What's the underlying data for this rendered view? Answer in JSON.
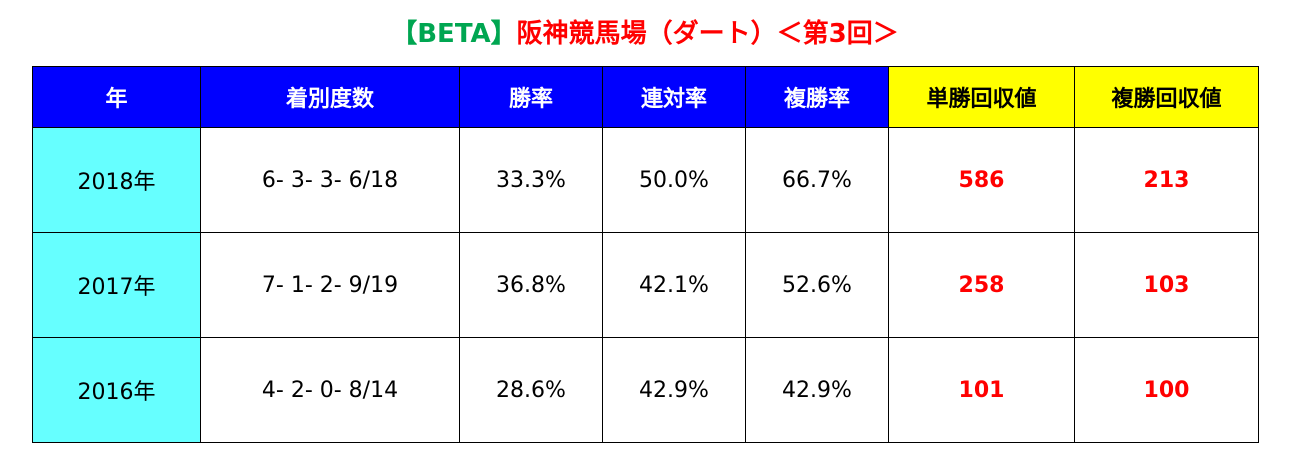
{
  "title": {
    "prefix": "【BETA】",
    "main": "阪神競馬場（ダート）＜第3回＞"
  },
  "table": {
    "header": [
      "年",
      "着別度数",
      "勝率",
      "連対率",
      "複勝率",
      "単勝回収値",
      "複勝回収値"
    ],
    "rows": [
      [
        "2018年",
        "6- 3- 3- 6/18",
        "33.3%",
        "50.0%",
        "66.7%",
        "586",
        "213"
      ],
      [
        "2017年",
        "7- 1- 2- 9/19",
        "36.8%",
        "42.1%",
        "52.6%",
        "258",
        "103"
      ],
      [
        "2016年",
        "4- 2- 0- 8/14",
        "28.6%",
        "42.9%",
        "42.9%",
        "101",
        "100"
      ]
    ]
  }
}
